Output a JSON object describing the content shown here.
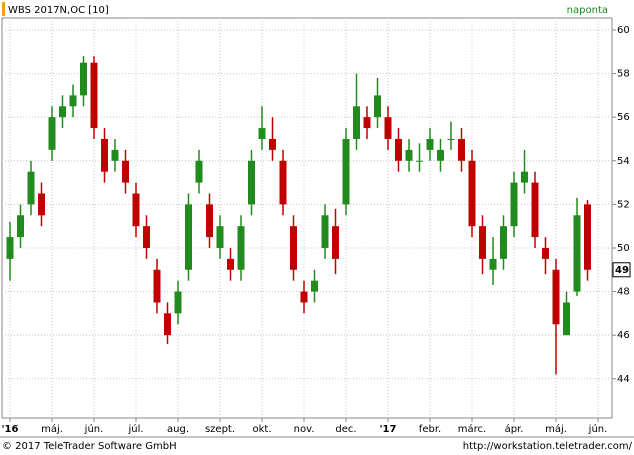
{
  "chart_data": {
    "type": "candlestick",
    "title": "WBS 2017N,OC [10]",
    "interval": "naponta",
    "categories": [
      "'16",
      null,
      null,
      null,
      "máj.",
      null,
      null,
      null,
      "jún.",
      null,
      null,
      null,
      "júl.",
      null,
      null,
      null,
      "aug.",
      null,
      null,
      null,
      "szept.",
      null,
      null,
      null,
      "okt.",
      null,
      null,
      null,
      "nov.",
      null,
      null,
      null,
      "dec.",
      null,
      null,
      null,
      "'17",
      null,
      null,
      null,
      "febr.",
      null,
      null,
      null,
      "márc.",
      null,
      null,
      null,
      "ápr.",
      null,
      null,
      null,
      "máj.",
      null,
      null,
      null,
      "jún."
    ],
    "open": [
      49.5,
      50.5,
      52,
      52.5,
      54.5,
      56,
      56.5,
      57,
      58.5,
      55,
      54,
      54,
      52.5,
      51,
      49,
      47,
      47,
      49,
      53,
      52,
      50,
      49.5,
      49,
      52,
      55,
      55,
      54,
      51,
      48,
      48,
      50,
      51,
      52,
      55,
      56,
      56,
      56,
      55,
      54,
      54,
      54.5,
      54,
      55,
      55,
      54,
      51,
      49,
      49.5,
      51,
      53,
      53,
      50,
      49,
      46,
      48,
      52,
      null
    ],
    "high": [
      51.2,
      52,
      54,
      53,
      56.5,
      57,
      57.5,
      58.8,
      58.8,
      55.5,
      55,
      54.5,
      53,
      51.5,
      49.5,
      47.5,
      48.5,
      52.5,
      54.5,
      52.5,
      51.5,
      50,
      51.5,
      54.5,
      56.5,
      56,
      54.5,
      51.5,
      48.5,
      49,
      52,
      51.8,
      55.5,
      58,
      56.5,
      57.8,
      56.5,
      55.5,
      55,
      54.8,
      55.5,
      55,
      55.8,
      55.5,
      54.5,
      51.5,
      50.5,
      51.5,
      53.5,
      54.5,
      53.5,
      50.5,
      49.5,
      48,
      52.3,
      52.2,
      null
    ],
    "low": [
      48.5,
      50,
      51.5,
      51,
      54,
      55.5,
      56,
      56.5,
      55,
      53,
      53.5,
      52.5,
      50.5,
      49.5,
      47,
      45.6,
      46.5,
      48.5,
      52.5,
      50,
      49.5,
      48.5,
      48.5,
      51.5,
      54.5,
      54,
      51.5,
      48.5,
      47,
      47.5,
      49.5,
      48.8,
      51.5,
      54.5,
      55,
      55.5,
      54.5,
      53.5,
      53.5,
      53.5,
      54,
      53.5,
      54.5,
      53.5,
      50.5,
      48.8,
      48.3,
      49,
      50.5,
      52.5,
      50,
      48.8,
      44.2,
      46,
      47.8,
      48.5,
      null
    ],
    "close": [
      50.5,
      51.5,
      53.5,
      51.5,
      56,
      56.5,
      57,
      58.5,
      55.5,
      53.5,
      54.5,
      53,
      51,
      50,
      47.5,
      46,
      48,
      52,
      54,
      50.5,
      51,
      49,
      51,
      54,
      55.5,
      54.5,
      52,
      49,
      47.5,
      48.5,
      51.5,
      49.5,
      55,
      56.5,
      55.5,
      57,
      55,
      54,
      54.5,
      54,
      55,
      54.5,
      55,
      54,
      51,
      49.5,
      49.5,
      51,
      53,
      53.5,
      50.5,
      49.5,
      46.5,
      47.5,
      51.5,
      49,
      null
    ],
    "up_color": "#228b1e",
    "down_color": "#c00000",
    "ylim": [
      42.2,
      60.55
    ],
    "yticks": [
      44,
      46,
      48,
      50,
      52,
      54,
      56,
      58,
      60
    ],
    "grid": true
  },
  "footer": {
    "copyright": "© 2017 TeleTrader Software GmbH",
    "url": "http://workstation.teletrader.com/"
  }
}
